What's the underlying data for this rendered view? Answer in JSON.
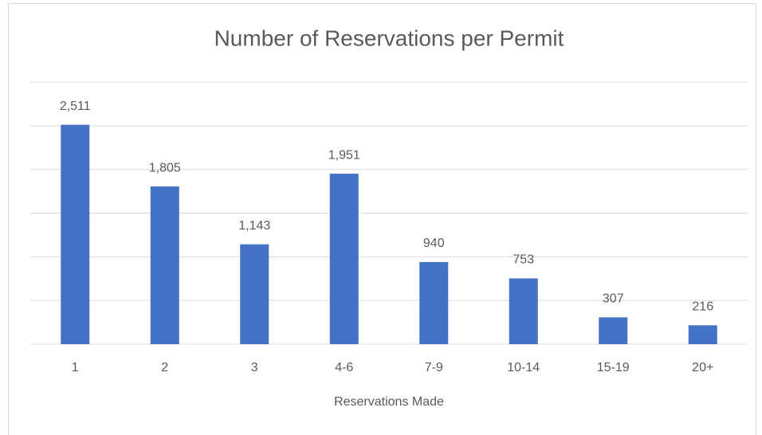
{
  "chart_data": {
    "type": "bar",
    "title": "Number of Reservations per Permit",
    "x_label": "Reservations Made",
    "categories": [
      "1",
      "2",
      "3",
      "4-6",
      "7-9",
      "10-14",
      "15-19",
      "20+"
    ],
    "values": [
      2511,
      1805,
      1143,
      1951,
      940,
      753,
      307,
      216
    ],
    "value_labels": [
      "2,511",
      "1,805",
      "1,143",
      "1,951",
      "940",
      "753",
      "307",
      "216"
    ],
    "color": "#4472c4",
    "ylim": [
      0,
      3000
    ],
    "yticks": [
      0,
      500,
      1000,
      1500,
      2000,
      2500,
      3000
    ],
    "grid": true
  }
}
